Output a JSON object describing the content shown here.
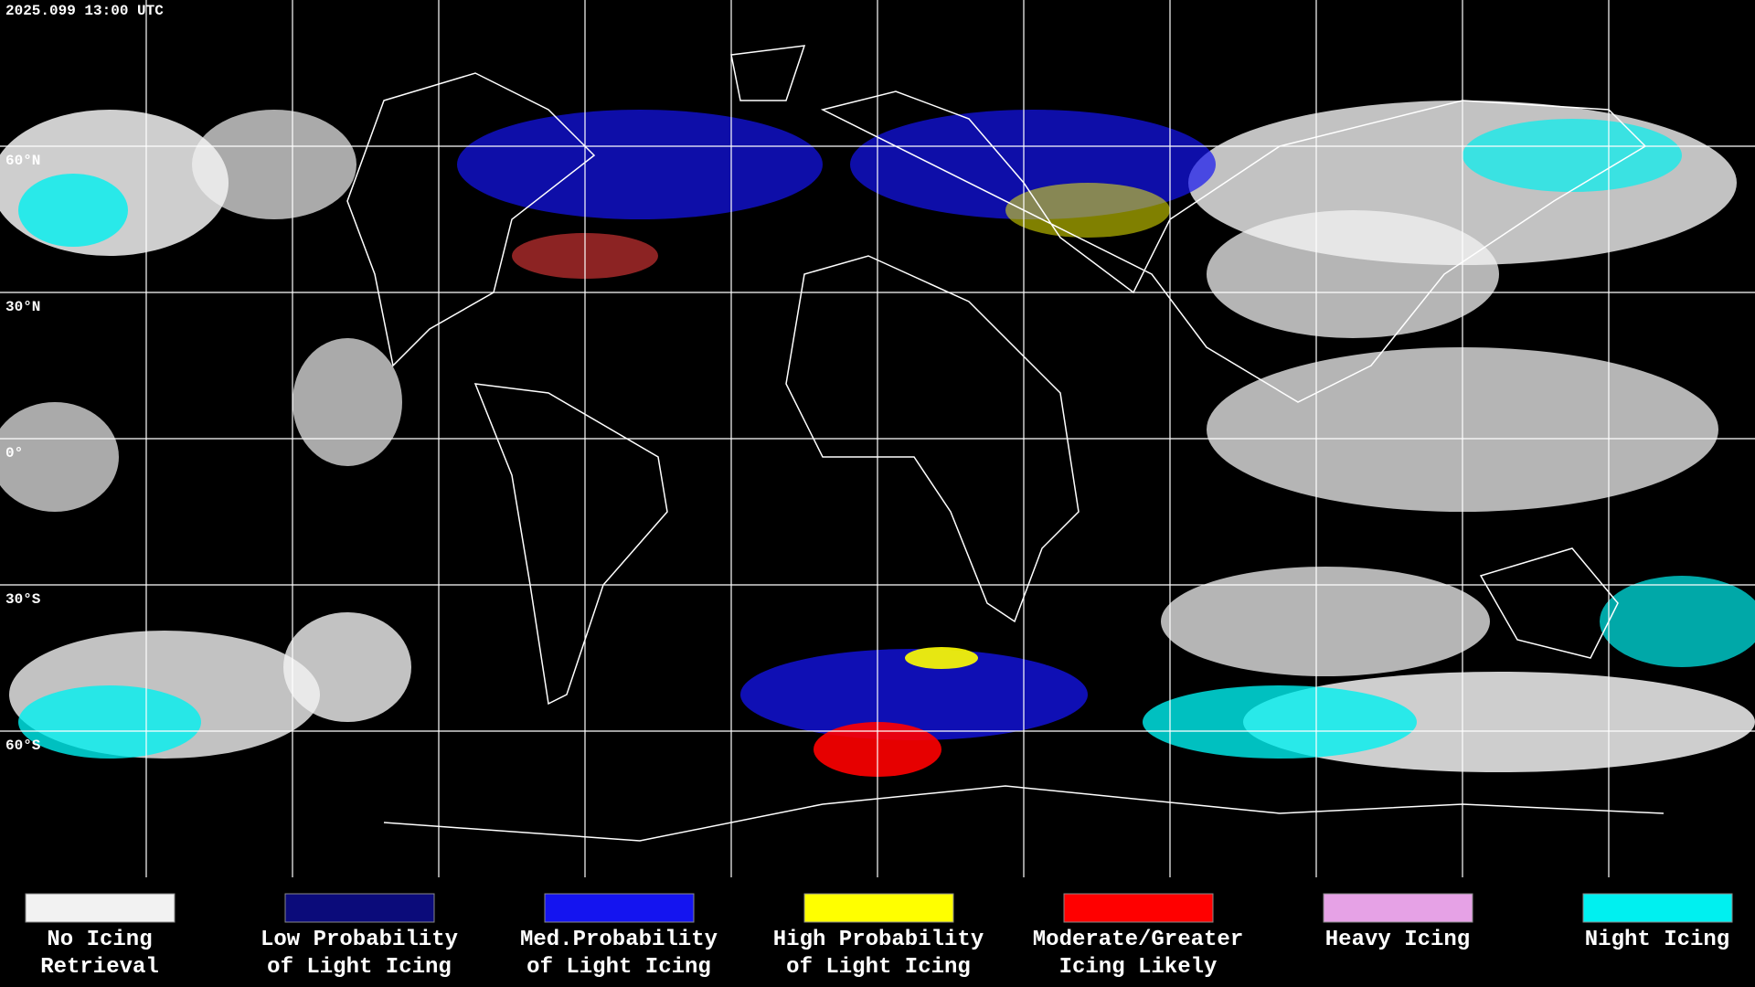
{
  "header": {
    "timestamp": "2025.099 13:00 UTC"
  },
  "map": {
    "lat_labels": [
      "60°N",
      "30°N",
      "0°",
      "30°S",
      "60°S"
    ]
  },
  "legend": {
    "items": [
      {
        "color": "#f2f2f2",
        "label_lines": [
          "No Icing",
          "Retrieval"
        ]
      },
      {
        "color": "#0b0b7a",
        "label_lines": [
          "Low Probability",
          "of Light Icing"
        ]
      },
      {
        "color": "#1414f0",
        "label_lines": [
          "Med.Probability",
          "of Light Icing"
        ]
      },
      {
        "color": "#ffff00",
        "label_lines": [
          "High Probability",
          "of Light Icing"
        ]
      },
      {
        "color": "#ff0000",
        "label_lines": [
          "Moderate/Greater",
          "Icing Likely"
        ]
      },
      {
        "color": "#e6a2e6",
        "label_lines": [
          "Heavy Icing"
        ]
      },
      {
        "color": "#00f0f0",
        "label_lines": [
          "Night Icing"
        ]
      }
    ]
  }
}
